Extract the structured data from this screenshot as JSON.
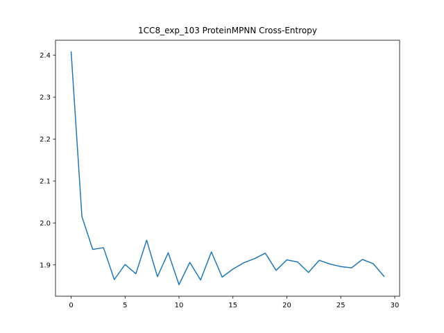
{
  "chart_data": {
    "type": "line",
    "title": "1CC8_exp_103 ProteinMPNN Cross-Entropy",
    "xlabel": "",
    "ylabel": "",
    "x": [
      0,
      1,
      2,
      3,
      4,
      5,
      6,
      7,
      8,
      9,
      10,
      11,
      12,
      13,
      14,
      15,
      16,
      17,
      18,
      19,
      20,
      21,
      22,
      23,
      24,
      25,
      26,
      27,
      28,
      29
    ],
    "series": [
      {
        "color": "#1f77b4",
        "values": [
          2.408,
          2.015,
          1.937,
          1.941,
          1.865,
          1.901,
          1.879,
          1.959,
          1.872,
          1.929,
          1.853,
          1.906,
          1.864,
          1.931,
          1.871,
          1.89,
          1.905,
          1.915,
          1.928,
          1.887,
          1.912,
          1.907,
          1.882,
          1.911,
          1.902,
          1.896,
          1.893,
          1.913,
          1.903,
          1.873
        ]
      }
    ],
    "xlim": [
      -1.45,
      30.45
    ],
    "ylim": [
      1.8253,
      2.4358
    ],
    "xticks": [
      0,
      5,
      10,
      15,
      20,
      25,
      30
    ],
    "yticks": [
      1.9,
      2.0,
      2.1,
      2.2,
      2.3,
      2.4
    ],
    "ytick_labels": [
      "1.9",
      "2.0",
      "2.1",
      "2.2",
      "2.3",
      "2.4"
    ],
    "grid": false,
    "legend": "none"
  }
}
